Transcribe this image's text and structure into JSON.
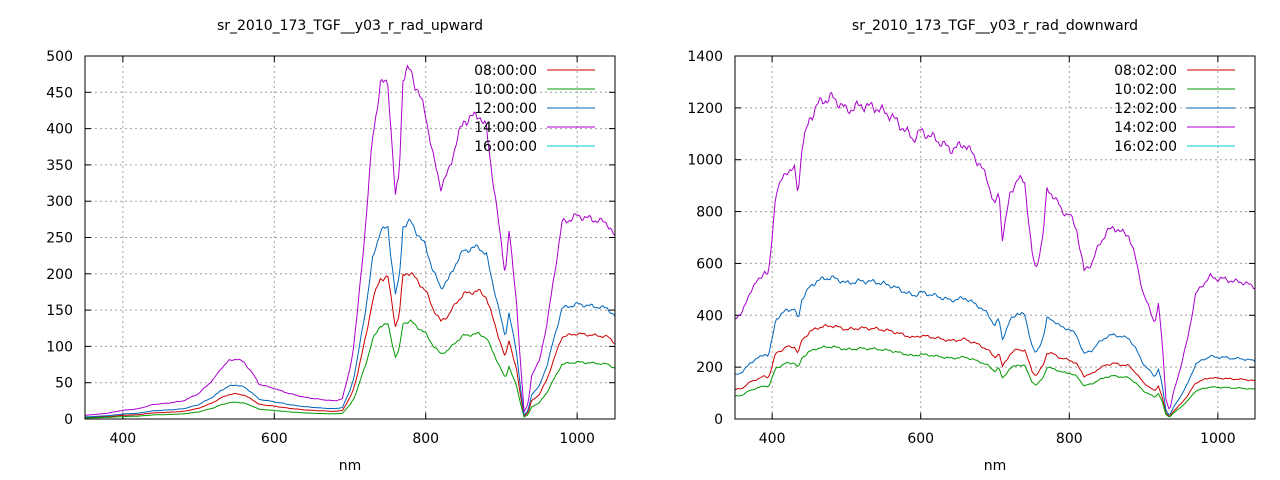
{
  "charts": [
    {
      "title": "sr_2010_173_TGF__y03_r_rad_upward",
      "xlabel": "nm",
      "xlim": [
        350,
        1050
      ],
      "ylim": [
        0,
        500
      ],
      "xticks": [
        400,
        600,
        800,
        1000
      ],
      "yticks": [
        0,
        50,
        100,
        150,
        200,
        250,
        300,
        350,
        400,
        450,
        500
      ],
      "grid": true,
      "legend_position": "top-right",
      "series": [
        {
          "name": "08:00:00",
          "color": "#cc0000",
          "scale": 0.42
        },
        {
          "name": "10:00:00",
          "color": "#009900",
          "scale": 0.28
        },
        {
          "name": "12:00:00",
          "color": "#0066bb",
          "scale": 0.565
        },
        {
          "name": "14:00:00",
          "color": "#aa00cc",
          "scale": 1.0
        },
        {
          "name": "16:00:00",
          "color": "#00cccc",
          "scale": 0.0
        }
      ]
    },
    {
      "title": "sr_2010_173_TGF__y03_r_rad_downward",
      "xlabel": "nm",
      "xlim": [
        350,
        1050
      ],
      "ylim": [
        0,
        1400
      ],
      "xticks": [
        400,
        600,
        800,
        1000
      ],
      "yticks": [
        0,
        200,
        400,
        600,
        800,
        1000,
        1200,
        1400
      ],
      "grid": true,
      "legend_position": "top-right",
      "series": [
        {
          "name": "08:02:00",
          "color": "#cc0000",
          "scale": 0.29
        },
        {
          "name": "10:02:00",
          "color": "#009900",
          "scale": 0.225
        },
        {
          "name": "12:02:00",
          "color": "#0066bb",
          "scale": 0.44
        },
        {
          "name": "14:02:00",
          "color": "#aa00cc",
          "scale": 1.0
        },
        {
          "name": "16:02:00",
          "color": "#00cccc",
          "scale": 0.0
        }
      ]
    }
  ],
  "chart_data": [
    {
      "type": "line",
      "title": "sr_2010_173_TGF__y03_r_rad_upward",
      "xlabel": "nm",
      "ylabel": "",
      "xlim": [
        350,
        1050
      ],
      "ylim": [
        0,
        500
      ],
      "base_x": [
        350,
        380,
        400,
        420,
        440,
        460,
        480,
        500,
        520,
        530,
        540,
        550,
        560,
        570,
        580,
        600,
        620,
        640,
        660,
        680,
        690,
        700,
        705,
        710,
        720,
        730,
        740,
        750,
        760,
        765,
        770,
        775,
        780,
        790,
        800,
        810,
        820,
        830,
        840,
        850,
        860,
        870,
        880,
        890,
        900,
        905,
        910,
        920,
        925,
        930,
        935,
        940,
        950,
        960,
        980,
        1000,
        1020,
        1040,
        1050
      ],
      "base_y": [
        5,
        8,
        12,
        14,
        20,
        22,
        25,
        35,
        55,
        70,
        80,
        83,
        78,
        65,
        48,
        42,
        35,
        30,
        27,
        25,
        28,
        70,
        100,
        150,
        260,
        390,
        460,
        465,
        305,
        340,
        470,
        478,
        480,
        450,
        420,
        360,
        320,
        340,
        380,
        410,
        415,
        420,
        400,
        320,
        240,
        200,
        260,
        160,
        80,
        10,
        20,
        60,
        80,
        130,
        270,
        280,
        275,
        270,
        250
      ],
      "series_scale": [
        0.42,
        0.28,
        0.565,
        1.0,
        0.0
      ]
    },
    {
      "type": "line",
      "title": "sr_2010_173_TGF__y03_r_rad_downward",
      "xlabel": "nm",
      "ylabel": "",
      "xlim": [
        350,
        1050
      ],
      "ylim": [
        0,
        1400
      ],
      "base_x": [
        350,
        360,
        370,
        380,
        390,
        395,
        400,
        405,
        410,
        420,
        430,
        435,
        440,
        450,
        460,
        470,
        480,
        490,
        500,
        520,
        540,
        560,
        580,
        590,
        600,
        620,
        640,
        660,
        680,
        690,
        700,
        705,
        710,
        720,
        730,
        740,
        750,
        755,
        760,
        765,
        770,
        780,
        790,
        800,
        810,
        820,
        830,
        840,
        850,
        860,
        870,
        880,
        890,
        900,
        910,
        915,
        920,
        925,
        930,
        935,
        940,
        950,
        960,
        970,
        980,
        990,
        1000,
        1010,
        1020,
        1030,
        1040,
        1050
      ],
      "base_y": [
        390,
        410,
        490,
        530,
        570,
        550,
        700,
        880,
        900,
        960,
        960,
        870,
        1050,
        1150,
        1210,
        1230,
        1240,
        1220,
        1190,
        1210,
        1200,
        1170,
        1110,
        1080,
        1110,
        1080,
        1040,
        1060,
        980,
        920,
        820,
        880,
        700,
        860,
        930,
        910,
        640,
        570,
        640,
        720,
        880,
        860,
        800,
        790,
        730,
        570,
        600,
        670,
        720,
        740,
        720,
        710,
        610,
        480,
        410,
        370,
        440,
        300,
        80,
        30,
        100,
        200,
        320,
        480,
        520,
        550,
        540,
        540,
        530,
        530,
        520,
        510
      ],
      "series_scale": [
        0.29,
        0.225,
        0.44,
        1.0,
        0.0
      ]
    }
  ]
}
